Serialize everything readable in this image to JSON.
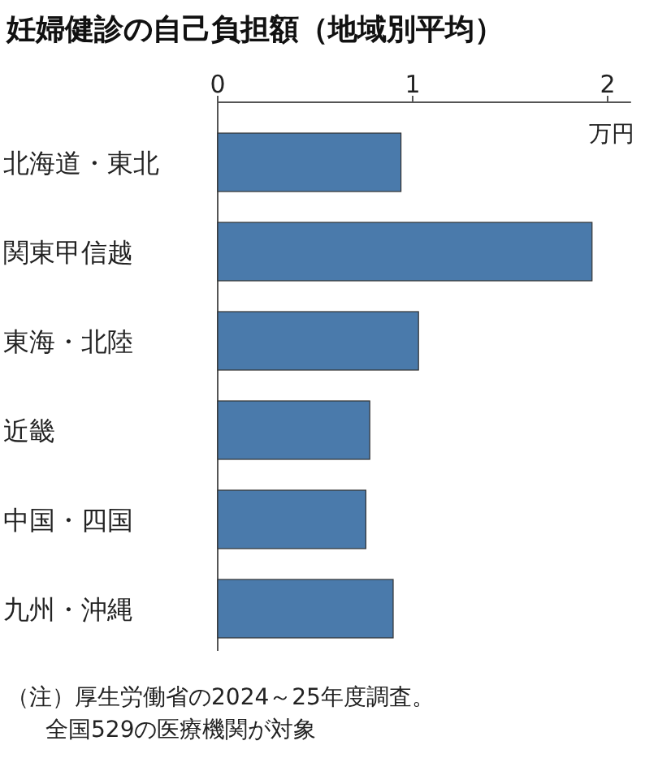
{
  "chart_data": {
    "type": "bar",
    "orientation": "horizontal",
    "title": "妊婦健診の自己負担額（地域別平均）",
    "xlabel": "万円",
    "categories": [
      "北海道・東北",
      "関東甲信越",
      "東海・北陸",
      "近畿",
      "中国・四国",
      "九州・沖縄"
    ],
    "values": [
      0.94,
      1.92,
      1.03,
      0.78,
      0.76,
      0.9
    ],
    "color": "#4a7aab",
    "xlim": [
      0,
      2.12
    ],
    "xticks": [
      0,
      1,
      2
    ],
    "grid": false,
    "annotations": [
      "（注）厚生労働省の2024～25年度調査。",
      "全国529の医療機関が対象"
    ]
  }
}
